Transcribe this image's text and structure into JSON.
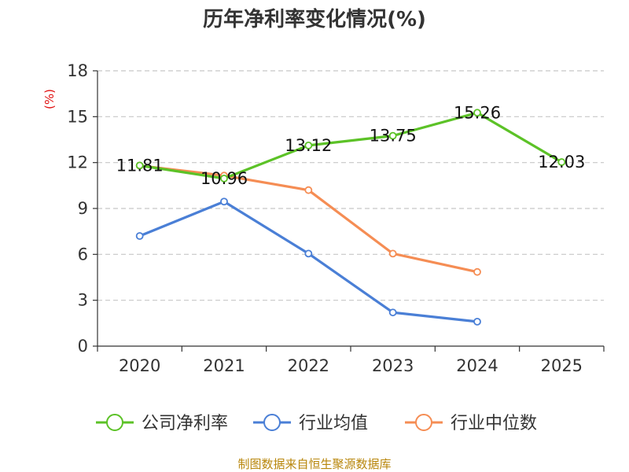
{
  "chart_data": {
    "type": "line",
    "title": "历年净利率变化情况(%)",
    "ylabel": "(%)",
    "xlabel": "",
    "categories": [
      "2020",
      "2021",
      "2022",
      "2023",
      "2024",
      "2025"
    ],
    "ylim": [
      0,
      18
    ],
    "yticks": [
      0,
      3,
      6,
      9,
      12,
      15,
      18
    ],
    "grid": true,
    "legend_position": "bottom",
    "series": [
      {
        "name": "公司净利率",
        "color": "#5cc227",
        "values": [
          11.81,
          10.96,
          13.12,
          13.75,
          15.26,
          12.03
        ],
        "labels": true
      },
      {
        "name": "行业均值",
        "color": "#4a7fd6",
        "values": [
          7.2,
          9.45,
          6.05,
          2.2,
          1.6,
          null
        ],
        "labels": false
      },
      {
        "name": "行业中位数",
        "color": "#f58d54",
        "values": [
          11.8,
          11.15,
          10.2,
          6.05,
          4.85,
          null
        ],
        "labels": false
      }
    ],
    "source": "制图数据来自恒生聚源数据库"
  }
}
